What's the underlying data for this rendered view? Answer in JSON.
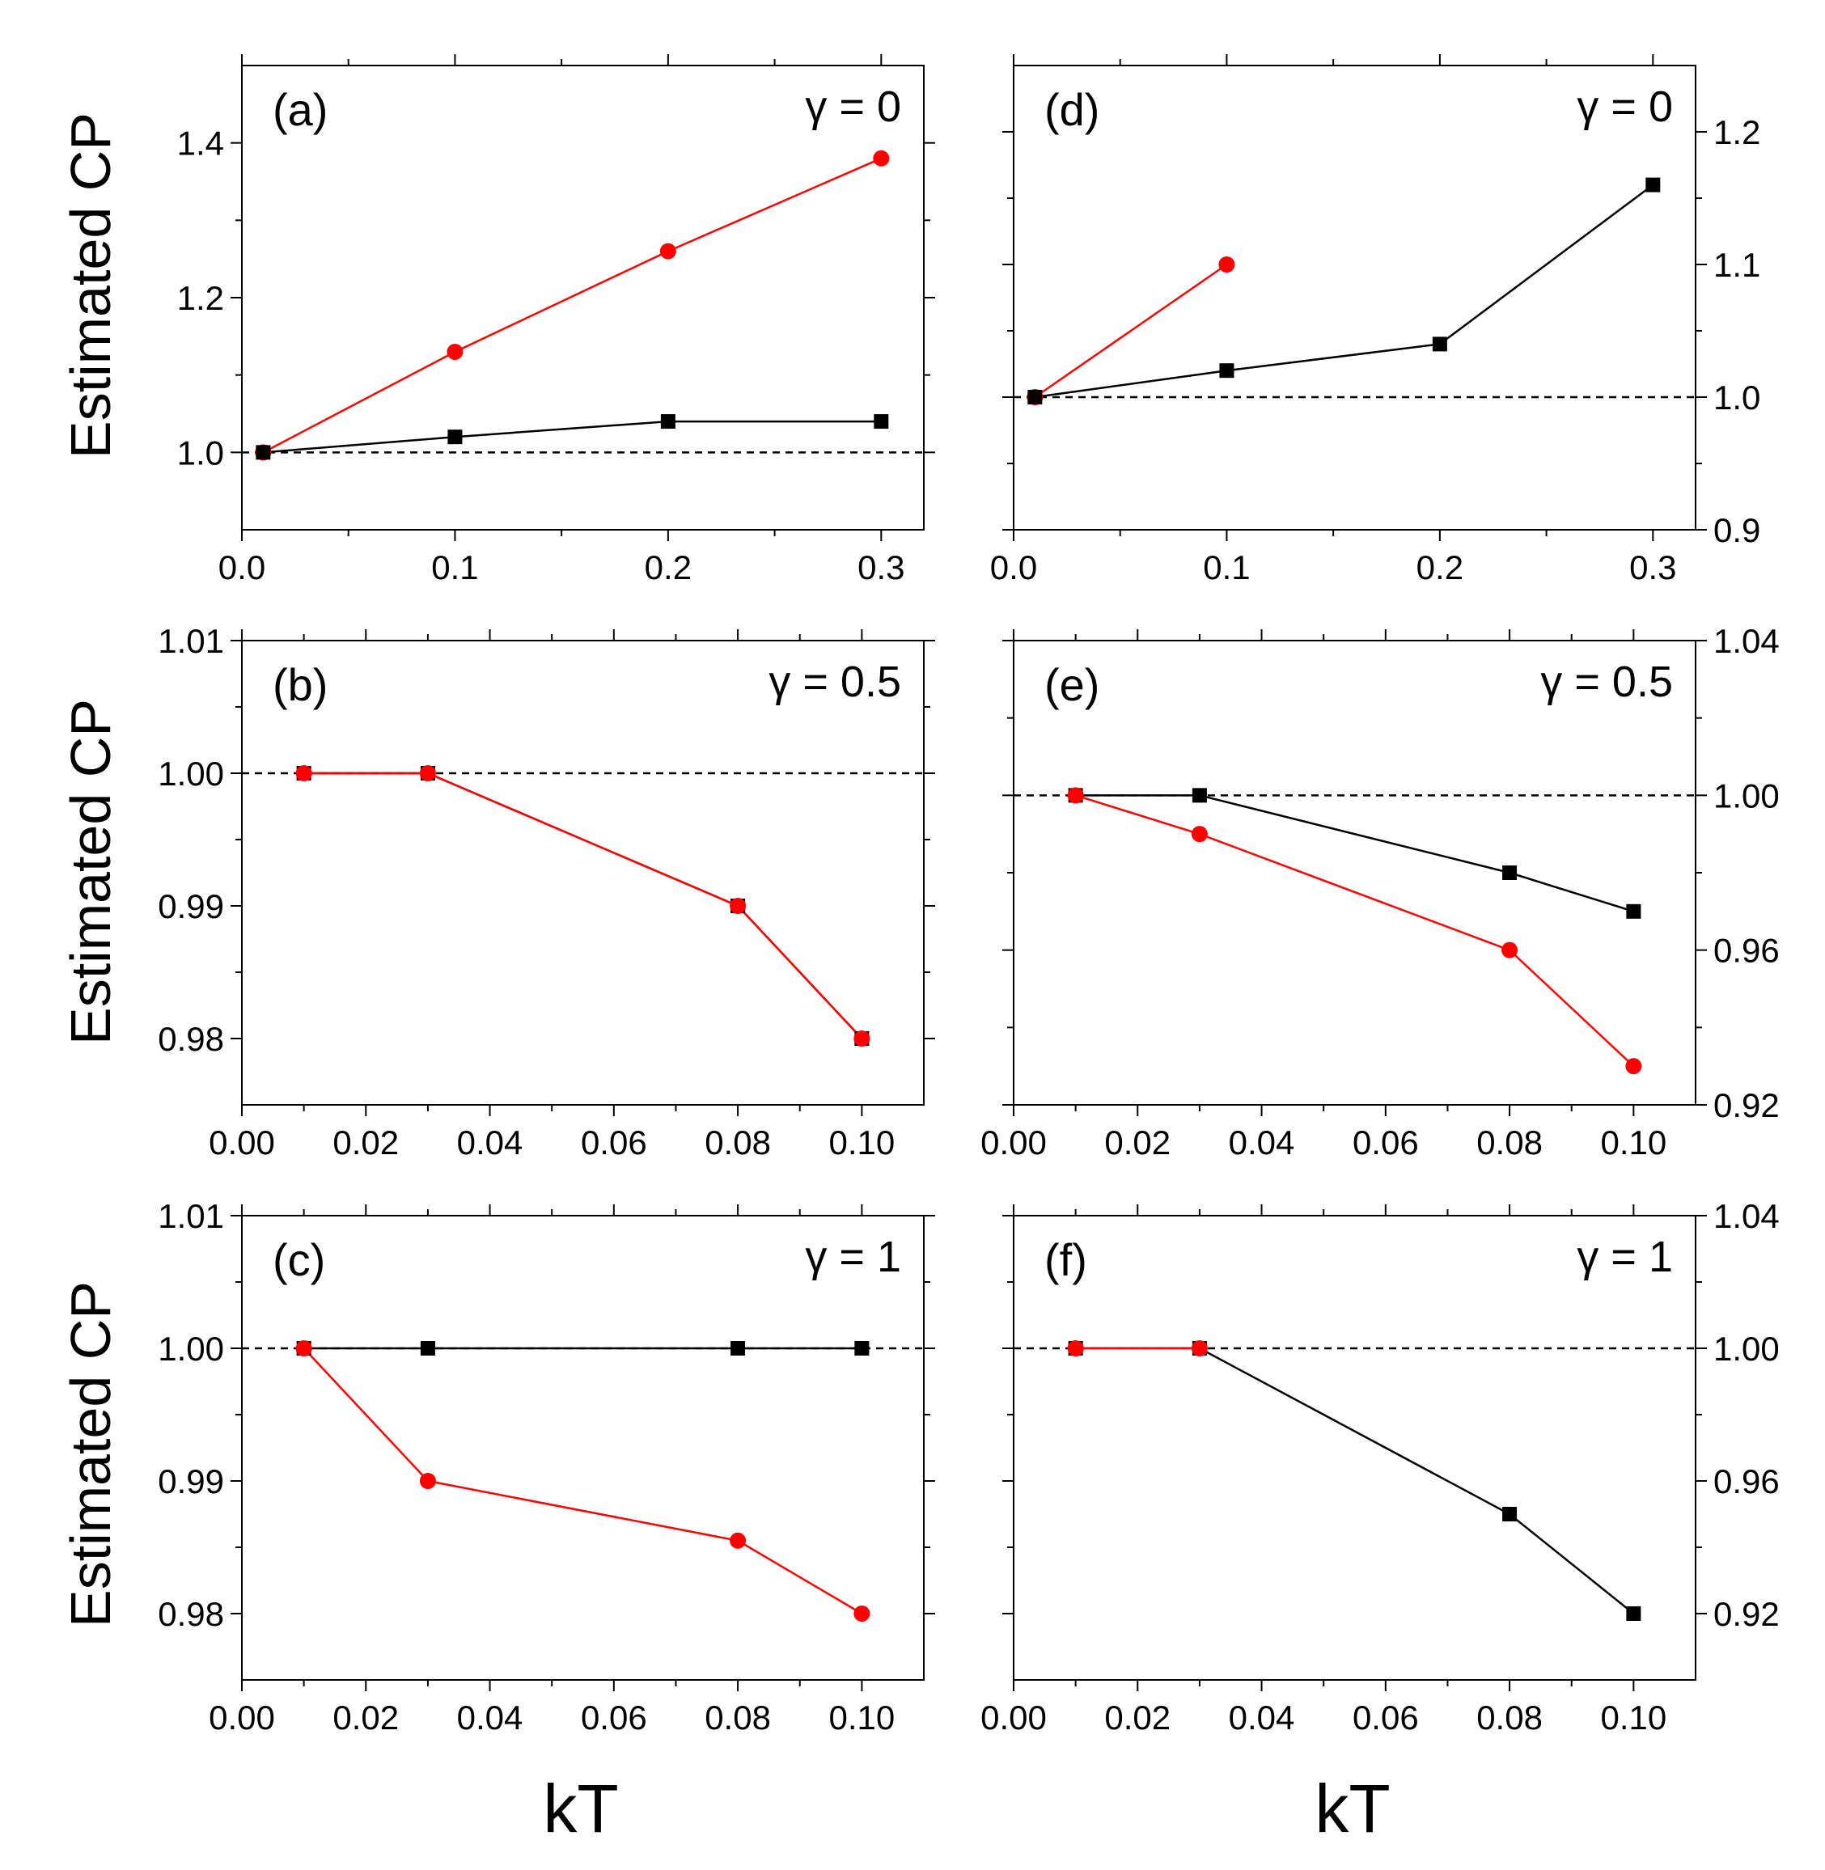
{
  "colors": {
    "series_red": "#ff0000",
    "series_black": "#000000",
    "reference_line": "#000000"
  },
  "axis_labels": {
    "y": "Estimated CP",
    "x": "kT"
  },
  "chart_data": [
    {
      "type": "line",
      "panel": "(a)",
      "gamma_label": "γ = 0",
      "y_axis_side": "left",
      "xlim": [
        0,
        0.32
      ],
      "ylim": [
        0.9,
        1.5
      ],
      "xticks": [
        0.0,
        0.1,
        0.2,
        0.3
      ],
      "xtick_labels": [
        "0.0",
        "0.1",
        "0.2",
        "0.3"
      ],
      "yticks": [
        1.0,
        1.2,
        1.4
      ],
      "ytick_labels": [
        "1.0",
        "1.2",
        "1.4"
      ],
      "reference_y": 1.0,
      "series": [
        {
          "color": "#ff0000",
          "marker": "circle",
          "x": [
            0.01,
            0.1,
            0.2,
            0.3
          ],
          "y": [
            1.0,
            1.13,
            1.26,
            1.38
          ]
        },
        {
          "color": "#000000",
          "marker": "square",
          "x": [
            0.01,
            0.1,
            0.2,
            0.3
          ],
          "y": [
            1.0,
            1.02,
            1.04,
            1.04
          ]
        }
      ]
    },
    {
      "type": "line",
      "panel": "(b)",
      "gamma_label": "γ = 0.5",
      "y_axis_side": "left",
      "xlim": [
        0,
        0.11
      ],
      "ylim": [
        0.975,
        1.01
      ],
      "xticks": [
        0.0,
        0.02,
        0.04,
        0.06,
        0.08,
        0.1
      ],
      "xtick_labels": [
        "0.00",
        "0.02",
        "0.04",
        "0.06",
        "0.08",
        "0.10"
      ],
      "yticks": [
        0.98,
        0.99,
        1.0,
        1.01
      ],
      "ytick_labels": [
        "0.98",
        "0.99",
        "1.00",
        "1.01"
      ],
      "reference_y": 1.0,
      "series": [
        {
          "color": "#000000",
          "marker": "square",
          "x": [
            0.01,
            0.03,
            0.08,
            0.1
          ],
          "y": [
            1.0,
            1.0,
            0.99,
            0.98
          ]
        },
        {
          "color": "#ff0000",
          "marker": "circle",
          "x": [
            0.01,
            0.03,
            0.08,
            0.1
          ],
          "y": [
            1.0,
            1.0,
            0.99,
            0.98
          ]
        }
      ]
    },
    {
      "type": "line",
      "panel": "(c)",
      "gamma_label": "γ = 1",
      "y_axis_side": "left",
      "xlim": [
        0,
        0.11
      ],
      "ylim": [
        0.975,
        1.01
      ],
      "xticks": [
        0.0,
        0.02,
        0.04,
        0.06,
        0.08,
        0.1
      ],
      "xtick_labels": [
        "0.00",
        "0.02",
        "0.04",
        "0.06",
        "0.08",
        "0.10"
      ],
      "yticks": [
        0.98,
        0.99,
        1.0,
        1.01
      ],
      "ytick_labels": [
        "0.98",
        "0.99",
        "1.00",
        "1.01"
      ],
      "reference_y": 1.0,
      "series": [
        {
          "color": "#000000",
          "marker": "square",
          "x": [
            0.01,
            0.03,
            0.08,
            0.1
          ],
          "y": [
            1.0,
            1.0,
            1.0,
            1.0
          ]
        },
        {
          "color": "#ff0000",
          "marker": "circle",
          "x": [
            0.01,
            0.03,
            0.08,
            0.1
          ],
          "y": [
            1.0,
            0.99,
            0.9855,
            0.98
          ]
        }
      ]
    },
    {
      "type": "line",
      "panel": "(d)",
      "gamma_label": "γ = 0",
      "y_axis_side": "right",
      "xlim": [
        0,
        0.32
      ],
      "ylim": [
        0.9,
        1.25
      ],
      "xticks": [
        0.0,
        0.1,
        0.2,
        0.3
      ],
      "xtick_labels": [
        "0.0",
        "0.1",
        "0.2",
        "0.3"
      ],
      "yticks": [
        0.9,
        1.0,
        1.1,
        1.2
      ],
      "ytick_labels": [
        "0.9",
        "1.0",
        "1.1",
        "1.2"
      ],
      "reference_y": 1.0,
      "series": [
        {
          "color": "#ff0000",
          "marker": "circle",
          "x": [
            0.01,
            0.1
          ],
          "y": [
            1.0,
            1.1
          ]
        },
        {
          "color": "#000000",
          "marker": "square",
          "x": [
            0.01,
            0.1,
            0.2,
            0.3
          ],
          "y": [
            1.0,
            1.02,
            1.04,
            1.16
          ]
        }
      ]
    },
    {
      "type": "line",
      "panel": "(e)",
      "gamma_label": "γ = 0.5",
      "y_axis_side": "right",
      "xlim": [
        0,
        0.11
      ],
      "ylim": [
        0.92,
        1.04
      ],
      "xticks": [
        0.0,
        0.02,
        0.04,
        0.06,
        0.08,
        0.1
      ],
      "xtick_labels": [
        "0.00",
        "0.02",
        "0.04",
        "0.06",
        "0.08",
        "0.10"
      ],
      "yticks": [
        0.92,
        0.96,
        1.0,
        1.04
      ],
      "ytick_labels": [
        "0.92",
        "0.96",
        "1.00",
        "1.04"
      ],
      "reference_y": 1.0,
      "series": [
        {
          "color": "#000000",
          "marker": "square",
          "x": [
            0.01,
            0.03,
            0.08,
            0.1
          ],
          "y": [
            1.0,
            1.0,
            0.98,
            0.97
          ]
        },
        {
          "color": "#ff0000",
          "marker": "circle",
          "x": [
            0.01,
            0.03,
            0.08,
            0.1
          ],
          "y": [
            1.0,
            0.99,
            0.96,
            0.93
          ]
        }
      ]
    },
    {
      "type": "line",
      "panel": "(f)",
      "gamma_label": "γ = 1",
      "y_axis_side": "right",
      "xlim": [
        0,
        0.11
      ],
      "ylim": [
        0.9,
        1.04
      ],
      "xticks": [
        0.0,
        0.02,
        0.04,
        0.06,
        0.08,
        0.1
      ],
      "xtick_labels": [
        "0.00",
        "0.02",
        "0.04",
        "0.06",
        "0.08",
        "0.10"
      ],
      "yticks": [
        0.92,
        0.96,
        1.0,
        1.04
      ],
      "ytick_labels": [
        "0.92",
        "0.96",
        "1.00",
        "1.04"
      ],
      "reference_y": 1.0,
      "series": [
        {
          "color": "#000000",
          "marker": "square",
          "x": [
            0.01,
            0.03,
            0.08,
            0.1
          ],
          "y": [
            1.0,
            1.0,
            0.95,
            0.92
          ]
        },
        {
          "color": "#ff0000",
          "marker": "circle",
          "x": [
            0.01,
            0.03
          ],
          "y": [
            1.0,
            1.0
          ]
        }
      ]
    }
  ]
}
